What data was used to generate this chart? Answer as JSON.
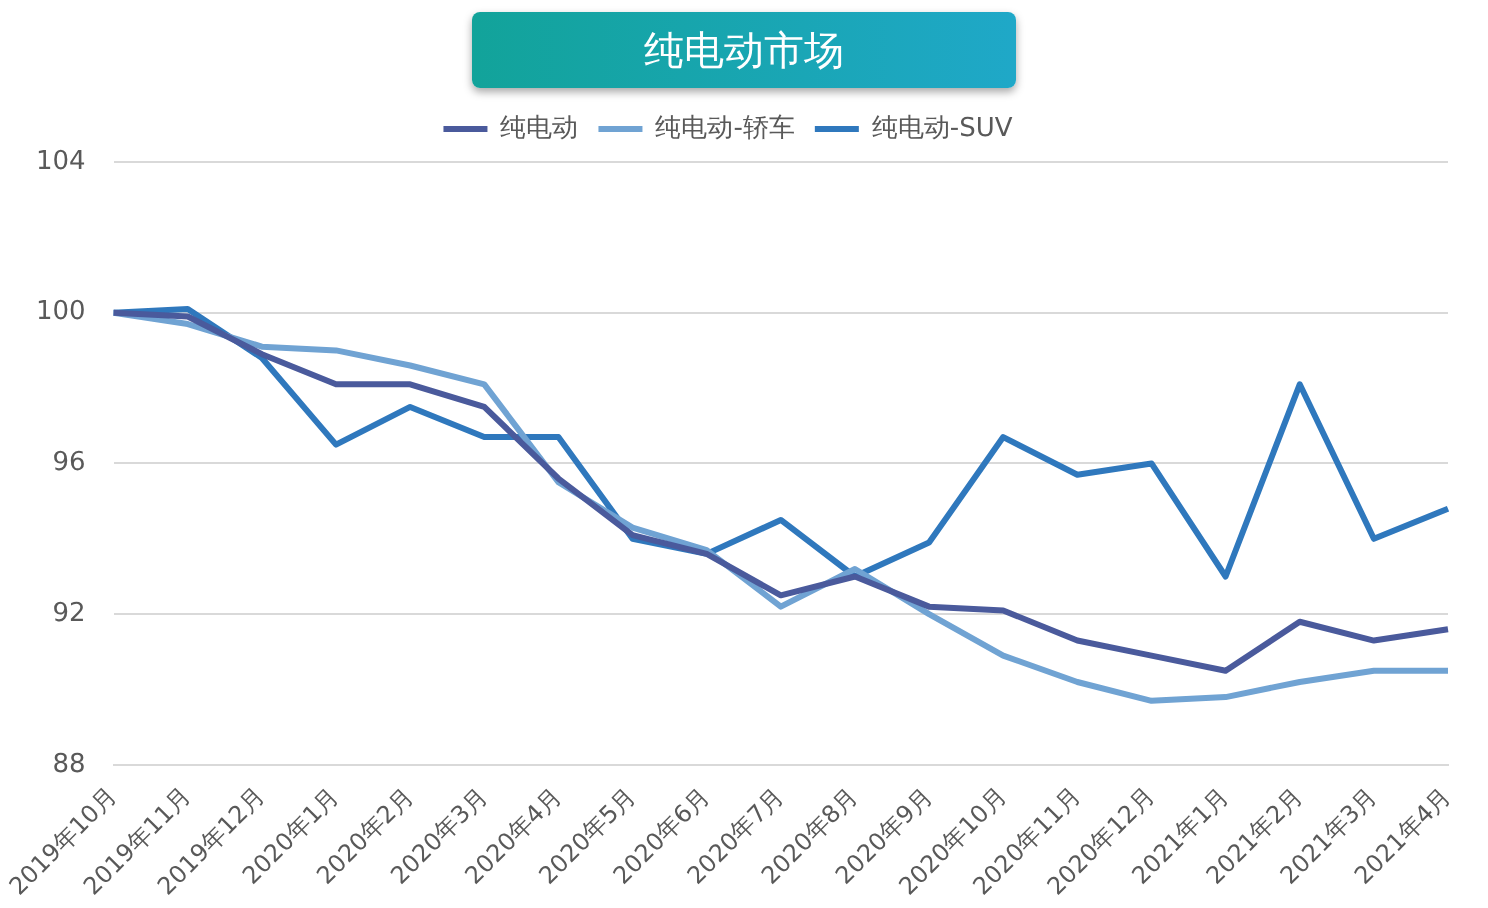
{
  "chart_data": {
    "type": "line",
    "title": "纯电动市场",
    "categories": [
      "2019年10月",
      "2019年11月",
      "2019年12月",
      "2020年1月",
      "2020年2月",
      "2020年3月",
      "2020年4月",
      "2020年5月",
      "2020年6月",
      "2020年7月",
      "2020年8月",
      "2020年9月",
      "2020年10月",
      "2020年11月",
      "2020年12月",
      "2021年1月",
      "2021年2月",
      "2021年3月",
      "2021年4月"
    ],
    "series": [
      {
        "name": "纯电动",
        "color": "#4a5a9c",
        "values": [
          100,
          99.9,
          98.9,
          98.1,
          98.1,
          97.5,
          95.6,
          94.1,
          93.6,
          92.5,
          93.0,
          92.2,
          92.1,
          91.3,
          90.9,
          90.5,
          91.8,
          91.3,
          91.6
        ]
      },
      {
        "name": "纯电动-轿车",
        "color": "#70a3d3",
        "values": [
          100,
          99.7,
          99.1,
          99.0,
          98.6,
          98.1,
          95.5,
          94.3,
          93.7,
          92.2,
          93.2,
          92.0,
          90.9,
          90.2,
          89.7,
          89.8,
          90.2,
          90.5,
          90.5
        ]
      },
      {
        "name": "纯电动-SUV",
        "color": "#2f78bd",
        "values": [
          100,
          100.1,
          98.8,
          96.5,
          97.5,
          96.7,
          96.7,
          94.0,
          93.6,
          94.5,
          93.0,
          93.9,
          96.7,
          95.7,
          96.0,
          93.0,
          98.1,
          94.0,
          94.8
        ]
      }
    ],
    "ylim": [
      88,
      104
    ],
    "yticks": [
      88,
      92,
      96,
      100,
      104
    ],
    "grid": "y",
    "legend": "top",
    "marker": "none",
    "line_style": "solid"
  }
}
